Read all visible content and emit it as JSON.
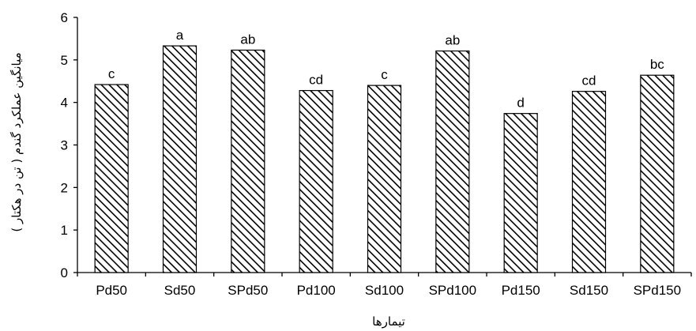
{
  "chart_data": {
    "type": "bar",
    "categories": [
      "Pd50",
      "Sd50",
      "SPd50",
      "Pd100",
      "Sd100",
      "SPd100",
      "Pd150",
      "Sd150",
      "SPd150"
    ],
    "values": [
      4.42,
      5.33,
      5.23,
      4.28,
      4.4,
      5.21,
      3.74,
      4.26,
      4.64
    ],
    "data_labels": [
      "c",
      "a",
      "ab",
      "cd",
      "c",
      "ab",
      "d",
      "cd",
      "bc"
    ],
    "xlabel": "تیمارها",
    "ylabel": "میانگین عملکرد گندم ( تن در هکتار )",
    "ylim": [
      0,
      6
    ],
    "yticks": [
      "0",
      "1",
      "2",
      "3",
      "4",
      "5",
      "6"
    ],
    "bar_fill": "diagonal-hatch",
    "colors": {
      "bar_stroke": "#000000",
      "hatch": "#000000",
      "background": "#ffffff"
    }
  }
}
